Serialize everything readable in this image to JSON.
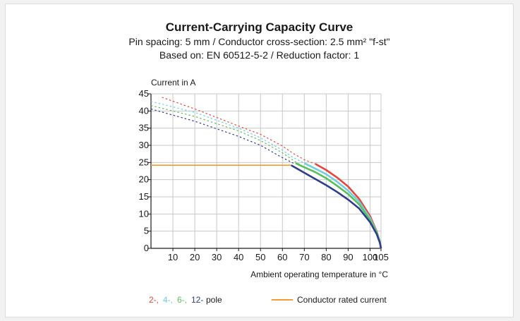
{
  "chart_data": {
    "type": "line",
    "title": "Current-Carrying Capacity Curve",
    "subtitle_1": "Pin spacing: 5 mm / Conductor cross-section: 2.5 mm² \"f-st\"",
    "subtitle_2": "Based on: EN 60512-5-2 / Reduction factor: 1",
    "ylabel": "Current in A",
    "xlabel": "Ambient operating temperature in °C",
    "xlim": [
      0,
      105
    ],
    "ylim": [
      0,
      45
    ],
    "x_ticks": [
      "10",
      "20",
      "30",
      "40",
      "50",
      "60",
      "70",
      "80",
      "90",
      "100",
      "105"
    ],
    "y_ticks": [
      "0",
      "5",
      "10",
      "15",
      "20",
      "25",
      "30",
      "35",
      "40",
      "45"
    ],
    "grid": true,
    "rated_current": {
      "name": "Conductor rated current",
      "value": 24.2,
      "x_end": 64,
      "color": "#f79a2e"
    },
    "series": [
      {
        "name": "2-",
        "color": "#e8463c",
        "dashed": {
          "x": [
            5,
            20,
            40,
            50,
            60,
            65,
            70,
            75,
            78
          ],
          "y": [
            44,
            40.6,
            35.6,
            33.2,
            29.8,
            27.6,
            25.8,
            24.6,
            23.6
          ]
        },
        "solid": {
          "x": [
            75,
            80,
            85,
            90,
            95,
            100,
            103,
            104.5,
            105
          ],
          "y": [
            24.6,
            22.8,
            20.6,
            18,
            14.4,
            9.4,
            5,
            2,
            0
          ]
        }
      },
      {
        "name": "4-",
        "color": "#6fd0de",
        "dashed": {
          "x": [
            0,
            20,
            40,
            50,
            60,
            65,
            70,
            73
          ],
          "y": [
            42.8,
            39.6,
            35,
            32.2,
            28.6,
            26.4,
            24.8,
            23.8
          ]
        },
        "solid": {
          "x": [
            70,
            75,
            80,
            85,
            90,
            95,
            100,
            103,
            104.5,
            105
          ],
          "y": [
            24.8,
            23.2,
            21.6,
            19.4,
            16.8,
            13.6,
            8.8,
            4.8,
            2,
            0
          ]
        }
      },
      {
        "name": "6-",
        "color": "#5cbf5a",
        "dashed": {
          "x": [
            0,
            20,
            40,
            50,
            60,
            65,
            68
          ],
          "y": [
            41.6,
            38.4,
            34.2,
            31.4,
            27.8,
            25.6,
            24.4
          ]
        },
        "solid": {
          "x": [
            66,
            70,
            75,
            80,
            85,
            90,
            95,
            100,
            103,
            104.5,
            105
          ],
          "y": [
            24.8,
            23.6,
            22.2,
            20.4,
            18.2,
            15.8,
            12.8,
            8.2,
            4.6,
            1.8,
            0
          ]
        }
      },
      {
        "name": "12-",
        "color": "#2f3d8f",
        "dashed": {
          "x": [
            0,
            20,
            40,
            50,
            60,
            65
          ],
          "y": [
            40.6,
            37,
            32.6,
            30,
            26.4,
            24.8
          ]
        },
        "solid": {
          "x": [
            64,
            70,
            75,
            80,
            85,
            90,
            95,
            100,
            103,
            104.5,
            105
          ],
          "y": [
            24.2,
            22,
            20.2,
            18.4,
            16.4,
            14.2,
            11.6,
            7.6,
            4.2,
            1.6,
            0
          ]
        }
      }
    ],
    "legend": {
      "placement": "bottom",
      "pole_items": [
        "2-,",
        "4-,",
        "6-,",
        "12-"
      ],
      "pole_suffix": "pole",
      "rated_label": "Conductor rated current"
    }
  }
}
